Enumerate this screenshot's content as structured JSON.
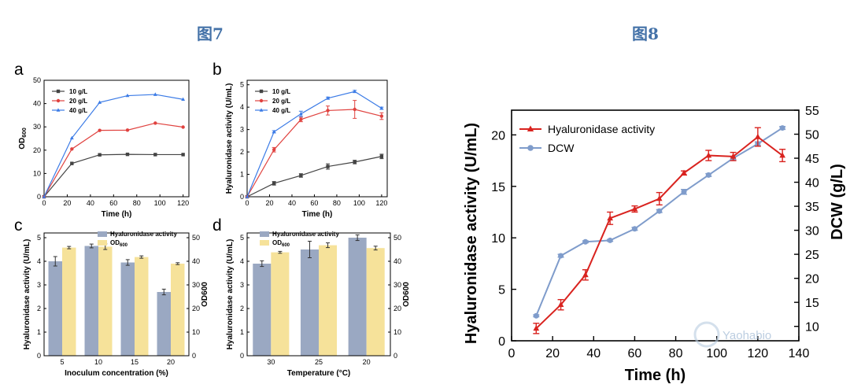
{
  "figure_titles": {
    "fig7": "图7",
    "fig8": "图8"
  },
  "watermark": "Yaohabio",
  "colors": {
    "black_series": "#444444",
    "red_series": "#e0423f",
    "blue_series": "#3b7be6",
    "bar_blue": "#9aa8c2",
    "bar_yellow": "#f6e29a",
    "dcw": "#7f9ccb",
    "hya": "#d9231f"
  },
  "chart_data": [
    {
      "panel": "a",
      "type": "line",
      "title": "",
      "xlabel": "Time (h)",
      "ylabel": "OD600",
      "xlim": [
        0,
        125
      ],
      "ylim": [
        0,
        50
      ],
      "xticks": [
        0,
        20,
        40,
        60,
        80,
        100,
        120
      ],
      "yticks": [
        0,
        10,
        20,
        30,
        40,
        50
      ],
      "series": [
        {
          "name": "10 g/L",
          "color": "#444444",
          "marker": "square",
          "x": [
            0,
            24,
            48,
            72,
            96,
            120
          ],
          "y": [
            0,
            14.3,
            18.0,
            18.2,
            18.1,
            18.1
          ]
        },
        {
          "name": "20 g/L",
          "color": "#e0423f",
          "marker": "circle",
          "x": [
            0,
            24,
            48,
            72,
            96,
            120
          ],
          "y": [
            0,
            20.5,
            28.5,
            28.6,
            31.6,
            29.9
          ]
        },
        {
          "name": "40 g/L",
          "color": "#3b7be6",
          "marker": "triangle",
          "x": [
            0,
            24,
            48,
            72,
            96,
            120
          ],
          "y": [
            0,
            25.2,
            40.5,
            43.4,
            43.9,
            41.8
          ]
        }
      ]
    },
    {
      "panel": "b",
      "type": "line",
      "title": "",
      "xlabel": "Time (h)",
      "ylabel": "Hyaluronidase activity (U/mL)",
      "xlim": [
        0,
        125
      ],
      "ylim": [
        0,
        5.2
      ],
      "xticks": [
        0,
        20,
        40,
        60,
        80,
        100,
        120
      ],
      "yticks": [
        0,
        1,
        2,
        3,
        4,
        5
      ],
      "series": [
        {
          "name": "10 g/L",
          "color": "#444444",
          "marker": "square",
          "x": [
            0,
            24,
            48,
            72,
            96,
            120
          ],
          "y": [
            0,
            0.6,
            0.95,
            1.35,
            1.55,
            1.8
          ],
          "err": [
            0,
            0.08,
            0.08,
            0.12,
            0.08,
            0.1
          ]
        },
        {
          "name": "20 g/L",
          "color": "#e0423f",
          "marker": "circle",
          "x": [
            0,
            24,
            48,
            72,
            96,
            120
          ],
          "y": [
            0,
            2.1,
            3.45,
            3.85,
            3.9,
            3.6
          ],
          "err": [
            0,
            0.1,
            0.1,
            0.2,
            0.4,
            0.15
          ]
        },
        {
          "name": "40 g/L",
          "color": "#3b7be6",
          "marker": "triangle",
          "x": [
            0,
            24,
            48,
            72,
            96,
            120
          ],
          "y": [
            0,
            2.9,
            3.7,
            4.4,
            4.7,
            3.95
          ],
          "err": [
            0,
            0.05,
            0.12,
            0.05,
            0.05,
            0.05
          ]
        }
      ]
    },
    {
      "panel": "c",
      "type": "bar",
      "xlabel": "Inoculum concentration (%)",
      "ylabel": "Hyaluronidase activity (U/mL)",
      "y2label": "OD600",
      "categories": [
        "5",
        "10",
        "15",
        "20"
      ],
      "ylim": [
        0,
        5.2
      ],
      "y2lim": [
        0,
        52
      ],
      "yticks": [
        0,
        1,
        2,
        3,
        4,
        5
      ],
      "y2ticks": [
        0,
        10,
        20,
        30,
        40,
        50
      ],
      "legend": [
        "Hyaluronidase activity",
        "OD600"
      ],
      "series": [
        {
          "name": "Hyaluronidase activity",
          "axis": "left",
          "color": "#9aa8c2",
          "values": [
            4.0,
            4.65,
            3.95,
            2.7
          ],
          "err": [
            0.2,
            0.08,
            0.12,
            0.12
          ]
        },
        {
          "name": "OD600",
          "axis": "right",
          "color": "#f6e29a",
          "values": [
            45.8,
            46.2,
            41.8,
            39.0
          ],
          "err": [
            0.5,
            1.2,
            0.5,
            0.4
          ]
        }
      ]
    },
    {
      "panel": "d",
      "type": "bar",
      "xlabel": "Temperature (°C)",
      "ylabel": "Hyaluronidase activity (U/mL)",
      "y2label": "OD600",
      "categories": [
        "30",
        "25",
        "20"
      ],
      "ylim": [
        0,
        5.2
      ],
      "y2lim": [
        0,
        52
      ],
      "yticks": [
        0,
        1,
        2,
        3,
        4,
        5
      ],
      "y2ticks": [
        0,
        10,
        20,
        30,
        40,
        50
      ],
      "legend": [
        "Hyaluronidase activity",
        "OD600"
      ],
      "series": [
        {
          "name": "Hyaluronidase activity",
          "axis": "left",
          "color": "#9aa8c2",
          "values": [
            3.9,
            4.5,
            5.0
          ],
          "err": [
            0.12,
            0.35,
            0.12
          ]
        },
        {
          "name": "OD600",
          "axis": "right",
          "color": "#f6e29a",
          "values": [
            43.8,
            46.8,
            45.6
          ],
          "err": [
            0.4,
            1.0,
            0.8
          ]
        }
      ]
    },
    {
      "panel": "fig8",
      "type": "line",
      "xlabel": "Time (h)",
      "ylabel": "Hyaluronidase activity (U/mL)",
      "y2label": "DCW (g/L)",
      "xlim": [
        0,
        140
      ],
      "ylim": [
        0,
        22.4
      ],
      "y2lim": [
        7,
        55
      ],
      "xticks": [
        0,
        20,
        40,
        60,
        80,
        100,
        120,
        140
      ],
      "yticks": [
        0,
        5,
        10,
        15,
        20
      ],
      "y2ticks": [
        10,
        15,
        20,
        25,
        30,
        35,
        40,
        45,
        50,
        55
      ],
      "series": [
        {
          "name": "Hyaluronidase activity",
          "axis": "left",
          "color": "#d9231f",
          "marker": "triangle",
          "x": [
            12,
            24,
            36,
            48,
            60,
            72,
            84,
            96,
            108,
            120,
            132
          ],
          "y": [
            1.2,
            3.5,
            6.4,
            11.9,
            12.8,
            13.8,
            16.3,
            18.0,
            17.9,
            19.8,
            18.0
          ],
          "err": [
            0.5,
            0.5,
            0.5,
            0.6,
            0.3,
            0.6,
            0.2,
            0.5,
            0.4,
            0.9,
            0.6
          ]
        },
        {
          "name": "DCW",
          "axis": "right",
          "color": "#7f9ccb",
          "marker": "circle",
          "x": [
            12,
            24,
            36,
            48,
            60,
            72,
            84,
            96,
            108,
            120,
            132
          ],
          "y": [
            12.2,
            24.7,
            27.6,
            27.9,
            30.3,
            34.0,
            38.0,
            41.5,
            45.0,
            48.0,
            51.3
          ],
          "err": [
            0.2,
            0.3,
            0.2,
            0.2,
            0.3,
            0.3,
            0.5,
            0.3,
            0.3,
            0.4,
            0.3
          ]
        }
      ]
    }
  ]
}
